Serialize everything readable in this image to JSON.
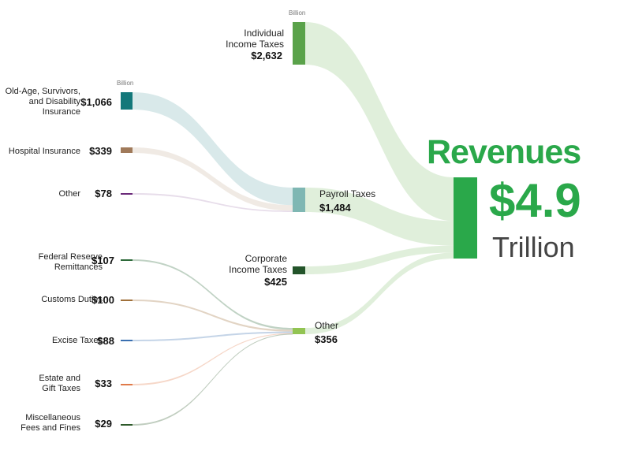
{
  "total": {
    "title": "Revenues",
    "value": "$4.9",
    "unit": "Trillion",
    "color": "#2aa84a"
  },
  "units": {
    "upper": "Billion",
    "left": "Billion"
  },
  "primary": [
    {
      "id": "individual",
      "label_lines": [
        "Individual",
        "Income Taxes"
      ],
      "value_label": "$2,632",
      "value": 2632,
      "color": "#5aa24a"
    },
    {
      "id": "payroll",
      "label_lines": [
        "Payroll Taxes"
      ],
      "value_label": "$1,484",
      "value": 1484,
      "color": "#7fb7b3"
    },
    {
      "id": "corporate",
      "label_lines": [
        "Corporate",
        "Income Taxes"
      ],
      "value_label": "$425",
      "value": 425,
      "color": "#23542a"
    },
    {
      "id": "other",
      "label_lines": [
        "Other"
      ],
      "value_label": "$356",
      "value": 356,
      "color": "#92c452"
    }
  ],
  "payroll_sources": [
    {
      "id": "oasdi",
      "label_lines": [
        "Old-Age, Survivors,",
        "and Disability",
        "Insurance"
      ],
      "value_label": "$1,066",
      "value": 1066,
      "color": "#13787a"
    },
    {
      "id": "hospital",
      "label_lines": [
        "Hospital Insurance"
      ],
      "value_label": "$339",
      "value": 339,
      "color": "#a07a5a"
    },
    {
      "id": "payroll-other",
      "label_lines": [
        "Other"
      ],
      "value_label": "$78",
      "value": 78,
      "color": "#6b2a7a"
    }
  ],
  "other_sources": [
    {
      "id": "fed",
      "label_lines": [
        "Federal Reserve",
        "Remittances"
      ],
      "value_label": "$107",
      "value": 107,
      "color": "#2e6a3a"
    },
    {
      "id": "customs",
      "label_lines": [
        "Customs Duties"
      ],
      "value_label": "$100",
      "value": 100,
      "color": "#a0703a"
    },
    {
      "id": "excise",
      "label_lines": [
        "Excise Taxes"
      ],
      "value_label": "$88",
      "value": 88,
      "color": "#3a6fb0"
    },
    {
      "id": "estate",
      "label_lines": [
        "Estate and",
        "Gift Taxes"
      ],
      "value_label": "$33",
      "value": 33,
      "color": "#e07a4a"
    },
    {
      "id": "misc",
      "label_lines": [
        "Miscellaneous",
        "Fees and Fines"
      ],
      "value_label": "$29",
      "value": 29,
      "color": "#2e5a2a"
    }
  ]
}
